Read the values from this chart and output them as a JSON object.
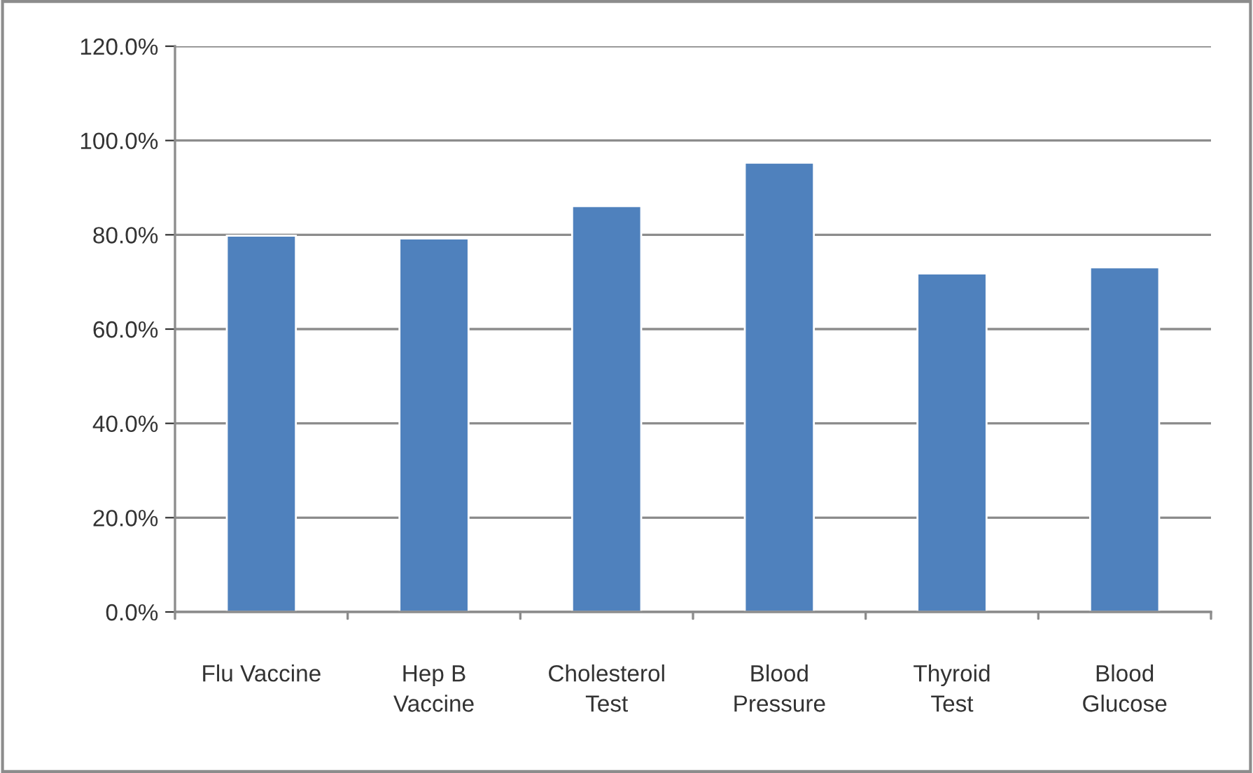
{
  "chart_data": {
    "type": "bar",
    "categories": [
      "Flu Vaccine",
      "Hep B\nVaccine",
      "Cholesterol\nTest",
      "Blood\nPressure",
      "Thyroid\nTest",
      "Blood\nGlucose"
    ],
    "values": [
      79.8,
      79.2,
      86.1,
      95.3,
      71.8,
      73.1
    ],
    "color": "#4f81bd",
    "ylim": [
      0,
      120
    ],
    "yticks": [
      {
        "value": 0,
        "label": "0.0%"
      },
      {
        "value": 20,
        "label": "20.0%"
      },
      {
        "value": 40,
        "label": "40.0%"
      },
      {
        "value": 60,
        "label": "60.0%"
      },
      {
        "value": 80,
        "label": "80.0%"
      },
      {
        "value": 100,
        "label": "100.0%"
      },
      {
        "value": 120,
        "label": "120.0%"
      }
    ],
    "grid": "y"
  }
}
